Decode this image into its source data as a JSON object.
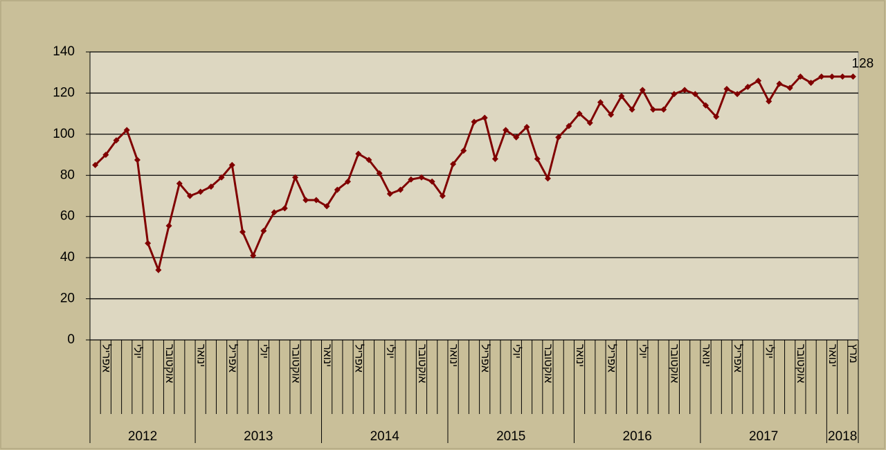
{
  "chart_data": {
    "type": "line",
    "categories": [
      null,
      "אפריל",
      null,
      null,
      "יולי",
      null,
      null,
      "אוקטובר",
      null,
      null,
      "ינואר",
      null,
      null,
      "אפריל",
      null,
      null,
      "יולי",
      null,
      null,
      "אוקטובר",
      null,
      null,
      "ינואר",
      null,
      null,
      "אפריל",
      null,
      null,
      "יולי",
      null,
      null,
      "אוקטובר",
      null,
      null,
      "ינואר",
      null,
      null,
      "אפריל",
      null,
      null,
      "יולי",
      null,
      null,
      "אוקטובר",
      null,
      null,
      "ינואר",
      null,
      null,
      "אפריל",
      null,
      null,
      "יולי",
      null,
      null,
      "אוקטובר",
      null,
      null,
      "ינואר",
      null,
      null,
      "אפריל",
      null,
      null,
      "יולי",
      null,
      null,
      "אוקטובר",
      null,
      null,
      "ינואר",
      null,
      "מרץ"
    ],
    "years": [
      "2012",
      null,
      null,
      null,
      null,
      null,
      null,
      null,
      null,
      null,
      "2013",
      null,
      null,
      null,
      null,
      null,
      null,
      null,
      null,
      null,
      null,
      null,
      "2014",
      null,
      null,
      null,
      null,
      null,
      null,
      null,
      null,
      null,
      null,
      null,
      "2015",
      null,
      null,
      null,
      null,
      null,
      null,
      null,
      null,
      null,
      null,
      null,
      "2016",
      null,
      null,
      null,
      null,
      null,
      null,
      null,
      null,
      null,
      null,
      null,
      "2017",
      null,
      null,
      null,
      null,
      null,
      null,
      null,
      null,
      null,
      null,
      null,
      "2018",
      null,
      null
    ],
    "series": [
      {
        "color": "#800000",
        "values": [
          85,
          90,
          97,
          102,
          87.5,
          47,
          34,
          55.5,
          76,
          70,
          72,
          74.5,
          79,
          85,
          52.5,
          41,
          53,
          62,
          64,
          79,
          68,
          68,
          65,
          73,
          77,
          90.5,
          87.5,
          81,
          71,
          73,
          78,
          79,
          77,
          70,
          85.5,
          92,
          106,
          108,
          88,
          102,
          98.5,
          103.5,
          88,
          78.5,
          98.5,
          104,
          110,
          105.5,
          115.5,
          109.5,
          118.5,
          112,
          121.5,
          112,
          112,
          119.5,
          121.5,
          119.5,
          114,
          108.5,
          122,
          119.5,
          123,
          126,
          116,
          124.5,
          122.5,
          128,
          125,
          128,
          128,
          128,
          128
        ]
      }
    ],
    "data_label_index": 72,
    "ylim": [
      0,
      140
    ],
    "yticks": [
      0,
      20,
      40,
      60,
      80,
      100,
      120,
      140
    ],
    "grid": true
  }
}
